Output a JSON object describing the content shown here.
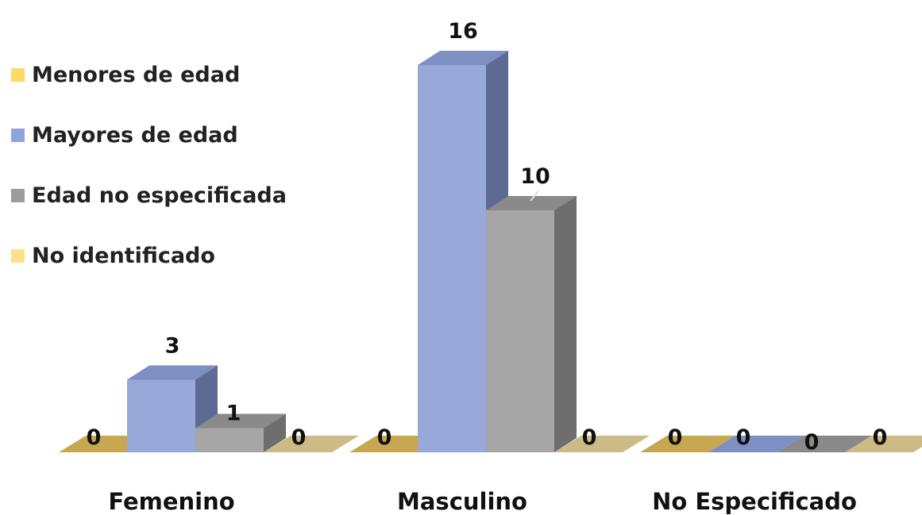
{
  "chart_data": {
    "type": "bar",
    "categories": [
      "Femenino",
      "Masculino",
      "No Especificado"
    ],
    "series": [
      {
        "name": "Menores de edad",
        "values": [
          0,
          0,
          0
        ]
      },
      {
        "name": "Mayores de edad",
        "values": [
          3,
          16,
          0
        ]
      },
      {
        "name": "Edad no especificada",
        "values": [
          1,
          10,
          0
        ]
      },
      {
        "name": "No identificado",
        "values": [
          0,
          0,
          0
        ]
      }
    ],
    "ylim": [
      0,
      16
    ],
    "three_d": true,
    "grid": false,
    "legend_position": "top-left",
    "colors": {
      "Menores de edad": {
        "front": "#C9B36B",
        "top": "#C7A850",
        "side": "#8F7A3A",
        "swatch": "#FFD966"
      },
      "Mayores de edad": {
        "front": "#98A8D8",
        "top": "#7E8FC4",
        "side": "#5D6A94",
        "swatch": "#8FA3DC"
      },
      "Edad no especificada": {
        "front": "#A6A6A6",
        "top": "#8A8A8A",
        "side": "#6E6E6E",
        "swatch": "#9C9C9C"
      },
      "No identificado": {
        "front": "#D6C795",
        "top": "#CDBB85",
        "side": "#A89A68",
        "swatch": "#FFE08A"
      }
    }
  }
}
